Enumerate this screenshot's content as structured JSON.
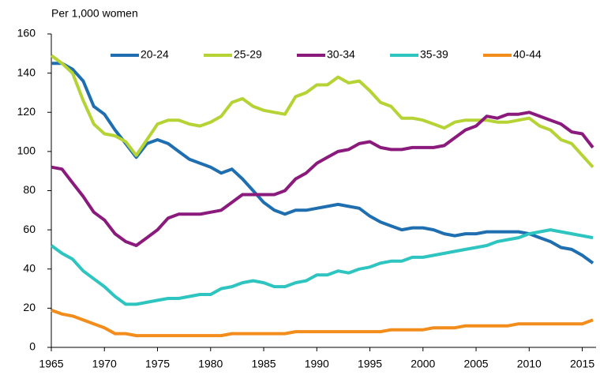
{
  "chart_data": {
    "type": "line",
    "y_label": "Per 1,000 women",
    "x": [
      1965,
      1966,
      1967,
      1968,
      1969,
      1970,
      1971,
      1972,
      1973,
      1974,
      1975,
      1976,
      1977,
      1978,
      1979,
      1980,
      1981,
      1982,
      1983,
      1984,
      1985,
      1986,
      1987,
      1988,
      1989,
      1990,
      1991,
      1992,
      1993,
      1994,
      1995,
      1996,
      1997,
      1998,
      1999,
      2000,
      2001,
      2002,
      2003,
      2004,
      2005,
      2006,
      2007,
      2008,
      2009,
      2010,
      2011,
      2012,
      2013,
      2014,
      2015,
      2016
    ],
    "series": [
      {
        "name": "20-24",
        "color": "#1f6fb0",
        "values": [
          145,
          145,
          142,
          136,
          123,
          119,
          111,
          104,
          97,
          104,
          106,
          104,
          100,
          96,
          94,
          92,
          89,
          91,
          86,
          80,
          74,
          70,
          68,
          70,
          70,
          71,
          72,
          73,
          72,
          71,
          67,
          64,
          62,
          60,
          61,
          61,
          60,
          58,
          57,
          58,
          58,
          59,
          59,
          59,
          59,
          58,
          56,
          54,
          51,
          50,
          47,
          43
        ]
      },
      {
        "name": "25-29",
        "color": "#b5d334",
        "values": [
          149,
          145,
          140,
          126,
          114,
          109,
          108,
          105,
          98,
          106,
          114,
          116,
          116,
          114,
          113,
          115,
          118,
          125,
          127,
          123,
          121,
          120,
          119,
          128,
          130,
          134,
          134,
          138,
          135,
          136,
          131,
          125,
          123,
          117,
          117,
          116,
          114,
          112,
          115,
          116,
          116,
          116,
          115,
          115,
          116,
          117,
          113,
          111,
          106,
          104,
          98,
          92
        ]
      },
      {
        "name": "30-34",
        "color": "#8b1a7d",
        "values": [
          92,
          91,
          84,
          77,
          69,
          65,
          58,
          54,
          52,
          56,
          60,
          66,
          68,
          68,
          68,
          69,
          70,
          74,
          78,
          78,
          78,
          78,
          80,
          86,
          89,
          94,
          97,
          100,
          101,
          104,
          105,
          102,
          101,
          101,
          102,
          102,
          102,
          103,
          107,
          111,
          113,
          118,
          117,
          119,
          119,
          120,
          118,
          116,
          114,
          110,
          109,
          102
        ]
      },
      {
        "name": "35-39",
        "color": "#2ec4c0",
        "values": [
          52,
          48,
          45,
          39,
          35,
          31,
          26,
          22,
          22,
          23,
          24,
          25,
          25,
          26,
          27,
          27,
          30,
          31,
          33,
          34,
          33,
          31,
          31,
          33,
          34,
          37,
          37,
          39,
          38,
          40,
          41,
          43,
          44,
          44,
          46,
          46,
          47,
          48,
          49,
          50,
          51,
          52,
          54,
          55,
          56,
          58,
          59,
          60,
          59,
          58,
          57,
          56
        ]
      },
      {
        "name": "40-44",
        "color": "#f28c1a",
        "values": [
          19,
          17,
          16,
          14,
          12,
          10,
          7,
          7,
          6,
          6,
          6,
          6,
          6,
          6,
          6,
          6,
          6,
          7,
          7,
          7,
          7,
          7,
          7,
          8,
          8,
          8,
          8,
          8,
          8,
          8,
          8,
          8,
          9,
          9,
          9,
          9,
          10,
          10,
          10,
          11,
          11,
          11,
          11,
          11,
          12,
          12,
          12,
          12,
          12,
          12,
          12,
          14
        ]
      }
    ],
    "xlim": [
      1965,
      2016
    ],
    "xticks": [
      1965,
      1970,
      1975,
      1980,
      1985,
      1990,
      1995,
      2000,
      2005,
      2010,
      2015
    ],
    "ylim": [
      0,
      160
    ],
    "yticks": [
      0,
      20,
      40,
      60,
      80,
      100,
      120,
      140,
      160
    ],
    "grid": false,
    "legend": "top"
  }
}
